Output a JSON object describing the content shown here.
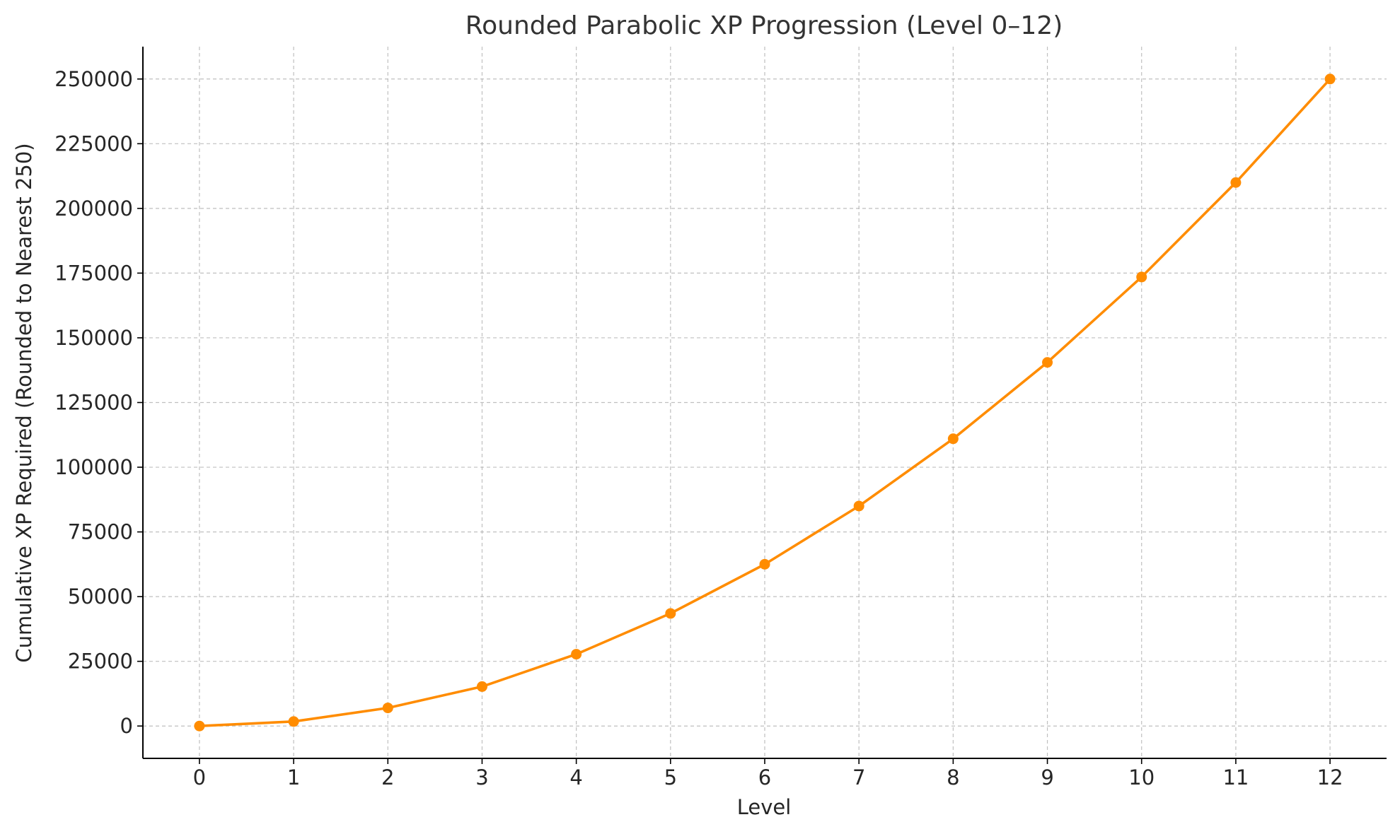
{
  "chart_data": {
    "type": "line",
    "title": "Rounded Parabolic XP Progression (Level 0–12)",
    "xlabel": "Level",
    "ylabel": "Cumulative XP Required (Rounded to Nearest 250)",
    "x": [
      0,
      1,
      2,
      3,
      4,
      5,
      6,
      7,
      8,
      9,
      10,
      11,
      12
    ],
    "x_ticks": [
      "0",
      "1",
      "2",
      "3",
      "4",
      "5",
      "6",
      "7",
      "8",
      "9",
      "10",
      "11",
      "12"
    ],
    "y_ticks": [
      "0",
      "25000",
      "50000",
      "75000",
      "100000",
      "125000",
      "150000",
      "175000",
      "200000",
      "225000",
      "250000"
    ],
    "xlim": [
      -0.6,
      12.6
    ],
    "ylim": [
      -12500,
      262500
    ],
    "grid": true,
    "series": [
      {
        "color": "#ff8c00",
        "marker": "circle",
        "values": [
          0,
          1750,
          7000,
          15250,
          27750,
          43500,
          62500,
          85000,
          111000,
          140500,
          173500,
          210000,
          250000
        ]
      }
    ]
  }
}
